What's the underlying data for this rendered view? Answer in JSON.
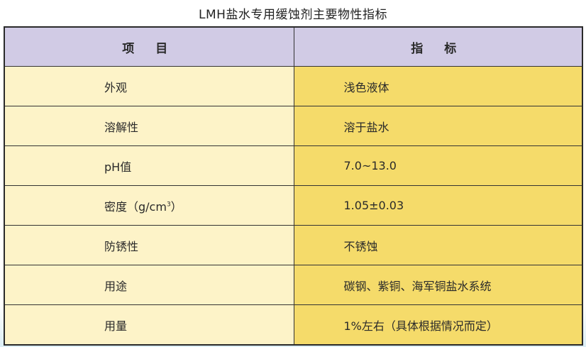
{
  "title": "LMH盐水专用缓蚀剂主要物性指标",
  "header": {
    "item": "项 目",
    "spec": "指 标"
  },
  "rows": [
    {
      "item": "外观",
      "spec": "浅色液体"
    },
    {
      "item": "溶解性",
      "spec": "溶于盐水"
    },
    {
      "item": "pH值",
      "spec": "7.0~13.0"
    },
    {
      "item": "密度（g/cm",
      "item_sup": "3",
      "item_end": "）",
      "spec": "1.05±0.03"
    },
    {
      "item": "防锈性",
      "spec": "不锈蚀"
    },
    {
      "item": "用途",
      "spec": "碳钢、紫铜、海军铜盐水系统"
    },
    {
      "item": "用量",
      "spec": "1%左右（具体根据情况而定）"
    }
  ],
  "colors": {
    "header_bg": "#d1cbe5",
    "left_bg": "#fdf3c8",
    "right_bg": "#f5db6a"
  }
}
